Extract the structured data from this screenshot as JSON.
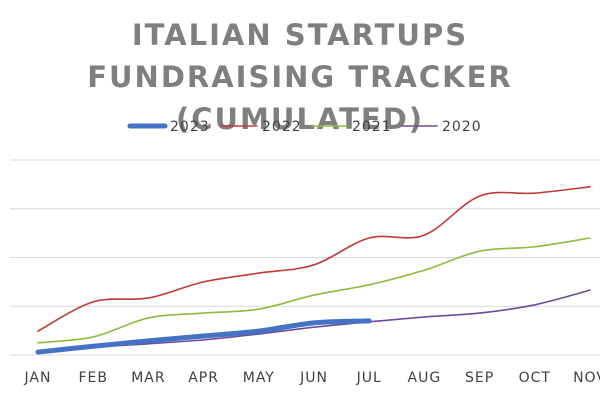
{
  "chart_data": {
    "type": "line",
    "title": "ITALIAN STARTUPS FUNDRAISING TRACKER (CUMULATED)",
    "categories": [
      "JAN",
      "FEB",
      "MAR",
      "APR",
      "MAY",
      "JUN",
      "JUL",
      "AUG",
      "SEP",
      "OCT",
      "NOV"
    ],
    "series": [
      {
        "name": "2023",
        "color": "#4472c4",
        "values": [
          0.06,
          0.18,
          0.29,
          0.39,
          0.49,
          0.66,
          0.7,
          null,
          null,
          null,
          null
        ]
      },
      {
        "name": "2022",
        "color": "#c0393b",
        "values": [
          0.49,
          1.09,
          1.17,
          1.5,
          1.68,
          1.85,
          2.4,
          2.46,
          3.26,
          3.32,
          3.45
        ]
      },
      {
        "name": "2021",
        "color": "#8fbc3f",
        "values": [
          0.25,
          0.37,
          0.76,
          0.86,
          0.94,
          1.23,
          1.44,
          1.74,
          2.13,
          2.22,
          2.4
        ]
      },
      {
        "name": "2020",
        "color": "#6b4c9a",
        "values": [
          0.06,
          0.16,
          0.23,
          0.31,
          0.43,
          0.57,
          0.68,
          0.78,
          0.86,
          1.03,
          1.33
        ]
      }
    ],
    "ylim": [
      0,
      4
    ],
    "yticks": [
      0,
      1,
      2,
      3,
      4
    ],
    "grid": true,
    "legend": "top"
  }
}
